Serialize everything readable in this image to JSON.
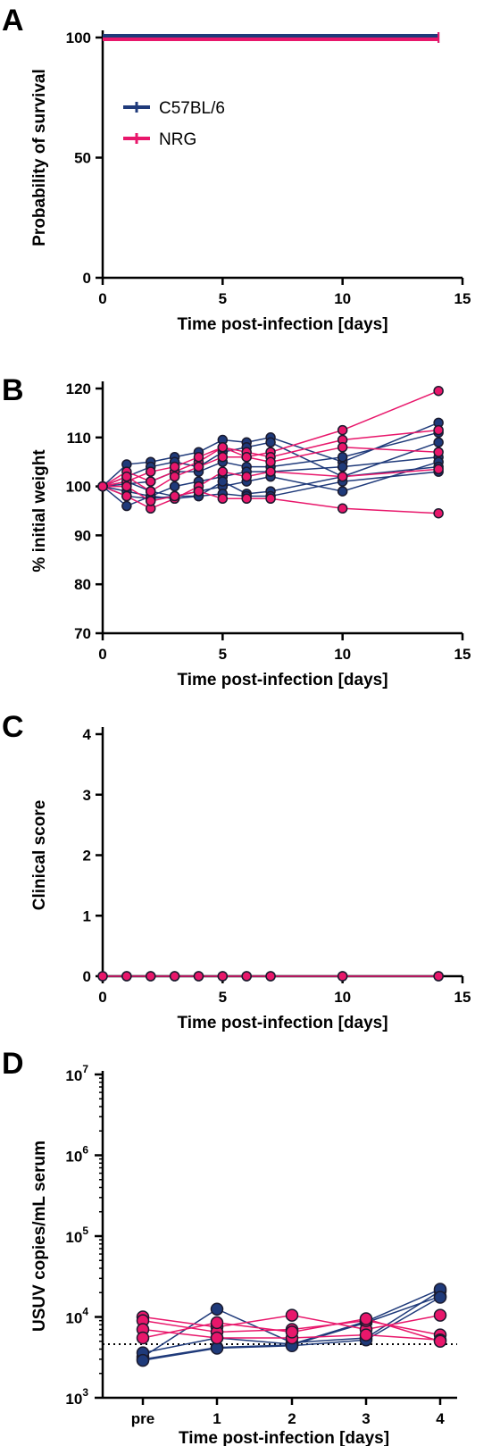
{
  "colors": {
    "c57": "#1f3a7a",
    "nrg": "#e8176b",
    "marker_edge": "#1a1a2e"
  },
  "chart_data": [
    {
      "panel": "A",
      "type": "line",
      "ylabel": "Probability of survival",
      "xlabel": "Time post-infection [days]",
      "xlim": [
        0,
        15
      ],
      "ylim": [
        0,
        100
      ],
      "xticks": [
        0,
        5,
        10,
        15
      ],
      "yticks": [
        0,
        50,
        100
      ],
      "legend_position": "upper-left",
      "series": [
        {
          "name": "C57BL/6",
          "color": "#1f3a7a",
          "x": [
            0,
            14
          ],
          "y": [
            100,
            100
          ]
        },
        {
          "name": "NRG",
          "color": "#e8176b",
          "x": [
            0,
            14
          ],
          "y": [
            100,
            100
          ]
        }
      ]
    },
    {
      "panel": "B",
      "type": "line",
      "ylabel": "% initial weight",
      "xlabel": "Time post-infection [days]",
      "xlim": [
        0,
        15
      ],
      "ylim": [
        70,
        120
      ],
      "xticks": [
        0,
        5,
        10,
        15
      ],
      "yticks": [
        70,
        80,
        90,
        100,
        110,
        120
      ],
      "x": [
        0,
        1,
        2,
        3,
        4,
        5,
        6,
        7,
        10,
        14
      ],
      "series": [
        {
          "group": "C57BL/6",
          "y": [
            100,
            104.5,
            105,
            106,
            107,
            109.5,
            109,
            110,
            105,
            113
          ]
        },
        {
          "group": "C57BL/6",
          "y": [
            100,
            102,
            104,
            105,
            104,
            107,
            108,
            109,
            102,
            109
          ]
        },
        {
          "group": "C57BL/6",
          "y": [
            100,
            100.5,
            101,
            103,
            103,
            105,
            104,
            104,
            106,
            111
          ]
        },
        {
          "group": "C57BL/6",
          "y": [
            100,
            99,
            98,
            100,
            101,
            102,
            103,
            103,
            104,
            106
          ]
        },
        {
          "group": "C57BL/6",
          "y": [
            100,
            98,
            97.5,
            98,
            99,
            100,
            101,
            102,
            99,
            105
          ]
        },
        {
          "group": "C57BL/6",
          "y": [
            100,
            96,
            98,
            97.5,
            98,
            101,
            98.5,
            99,
            102,
            104
          ]
        },
        {
          "group": "C57BL/6",
          "y": [
            100,
            101,
            99,
            98,
            98,
            98.5,
            98,
            98,
            101,
            103
          ]
        },
        {
          "group": "NRG",
          "y": [
            100,
            103,
            101,
            103,
            105,
            108,
            106,
            107,
            111.5,
            119.5
          ]
        },
        {
          "group": "NRG",
          "y": [
            100,
            101,
            103,
            104,
            106,
            108,
            107,
            106,
            109.5,
            111.5
          ]
        },
        {
          "group": "NRG",
          "y": [
            100,
            102,
            99,
            102,
            104,
            106,
            106,
            105,
            108,
            107
          ]
        },
        {
          "group": "NRG",
          "y": [
            100,
            98,
            95.5,
            97.5,
            100,
            103,
            102,
            103,
            102,
            103.5
          ]
        },
        {
          "group": "NRG",
          "y": [
            100,
            100,
            97,
            98,
            99,
            97.5,
            97.5,
            97.5,
            95.5,
            94.5
          ]
        }
      ]
    },
    {
      "panel": "C",
      "type": "line",
      "ylabel": "Clinical score",
      "xlabel": "Time post-infection [days]",
      "xlim": [
        0,
        15
      ],
      "ylim": [
        0,
        4
      ],
      "xticks": [
        0,
        5,
        10,
        15
      ],
      "yticks": [
        0,
        1,
        2,
        3,
        4
      ],
      "x": [
        0,
        1,
        2,
        3,
        4,
        5,
        6,
        7,
        10,
        14
      ],
      "series": [
        {
          "group": "C57BL/6",
          "y": [
            0,
            0,
            0,
            0,
            0,
            0,
            0,
            0,
            0,
            0
          ]
        },
        {
          "group": "NRG",
          "y": [
            0,
            0,
            0,
            0,
            0,
            0,
            0,
            0,
            0,
            0
          ]
        }
      ]
    },
    {
      "panel": "D",
      "type": "line",
      "ylabel": "USUV copies/mL serum",
      "xlabel": "Time post-infection [days]",
      "yscale": "log",
      "ylim": [
        1000,
        10000000
      ],
      "yticks": [
        1000,
        10000,
        100000,
        1000000,
        10000000
      ],
      "ytick_labels": [
        {
          "base": "10",
          "exp": "3"
        },
        {
          "base": "10",
          "exp": "4"
        },
        {
          "base": "10",
          "exp": "5"
        },
        {
          "base": "10",
          "exp": "6"
        },
        {
          "base": "10",
          "exp": "7"
        }
      ],
      "categories": [
        "pre",
        "1",
        "2",
        "3",
        "4"
      ],
      "detection_limit": 4600,
      "series": [
        {
          "group": "C57BL/6",
          "y": [
            3200,
            12500,
            4800,
            5500,
            21000
          ]
        },
        {
          "group": "C57BL/6",
          "y": [
            3000,
            4200,
            4500,
            8500,
            18000
          ]
        },
        {
          "group": "C57BL/6",
          "y": [
            3600,
            5500,
            4600,
            8800,
            22000
          ]
        },
        {
          "group": "C57BL/6",
          "y": [
            2900,
            4100,
            4400,
            5200,
            17500
          ]
        },
        {
          "group": "NRG",
          "y": [
            10000,
            7500,
            10500,
            7000,
            10500
          ]
        },
        {
          "group": "NRG",
          "y": [
            9000,
            6500,
            7000,
            9000,
            6000
          ]
        },
        {
          "group": "NRG",
          "y": [
            7000,
            5500,
            5500,
            6000,
            5200
          ]
        },
        {
          "group": "NRG",
          "y": [
            5500,
            8500,
            6500,
            9500,
            5000
          ]
        }
      ]
    }
  ],
  "legend": [
    {
      "label": "C57BL/6",
      "color": "#1f3a7a"
    },
    {
      "label": "NRG",
      "color": "#e8176b"
    }
  ]
}
